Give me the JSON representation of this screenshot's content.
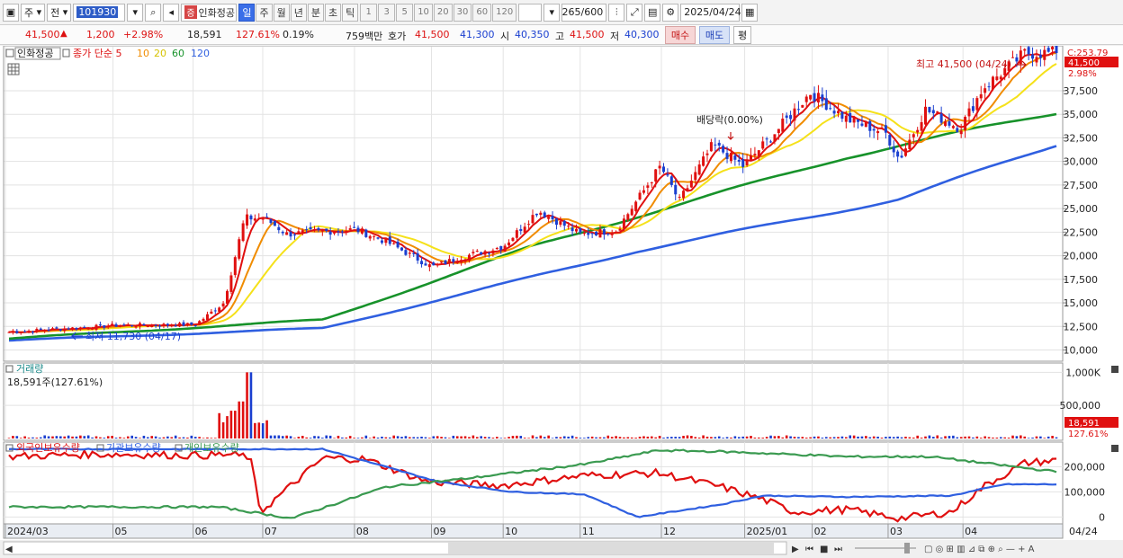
{
  "toolbar": {
    "market_label": "주",
    "prev_label": "전",
    "code": "101930",
    "stock_badge": "증",
    "stock_name": "인화정공",
    "periods": [
      "일",
      "주",
      "월",
      "년",
      "분",
      "초",
      "틱"
    ],
    "active_period": "일",
    "minute_options": [
      "1",
      "3",
      "5",
      "10",
      "20",
      "30",
      "60",
      "120"
    ],
    "bar_count": "265",
    "bar_total": "/600",
    "date": "2025/04/24"
  },
  "quote": {
    "price": "41,500",
    "up_mark": "▲",
    "change": "1,200",
    "change_pct": "+2.98%",
    "volume": "18,591",
    "volume_ratio": "127.61%",
    "turnover": "0.19%",
    "amount": "759백만",
    "bid_label": "호가",
    "ask_price": "41,500",
    "bid_price": "41,300",
    "open_label": "시",
    "open": "40,350",
    "high_label": "고",
    "high": "41,500",
    "low_label": "저",
    "low": "40,300",
    "buy_label": "매수",
    "sell_label": "매도",
    "flat_label": "평"
  },
  "price_panel": {
    "legend_stock": "인화정공",
    "legend_ma_label": "종가 단순 5",
    "legend_ma": [
      "10",
      "20",
      "60",
      "120"
    ],
    "high_annotation": "최고 41,500 (04/24)",
    "low_annotation": "최저 11,730 (04/17)",
    "dividend_annotation": "배당락(0.00%)",
    "top_scale_label": "C:253.79",
    "last_price_tag": "41,500",
    "last_pct_tag": "2.98%"
  },
  "volume_panel": {
    "title": "거래량",
    "current": "18,591주(127.61%)",
    "last_tag": "18,591",
    "last_pct_tag": "127.61%"
  },
  "holder_panel": {
    "legend": [
      "외국인보유수량",
      "기관보유수량",
      "개인보유수량"
    ]
  },
  "colors": {
    "up": "#e01010",
    "down": "#1a3fd0",
    "ma5": "#e01010",
    "ma10": "#f08c00",
    "ma20": "#f5e11a",
    "ma60": "#17922a",
    "ma120": "#2f5fe0",
    "foreign": "#e01010",
    "institution": "#2f5fe0",
    "individual": "#3a9a50"
  },
  "chart_data": [
    {
      "type": "candlestick",
      "title": "",
      "x": [
        "2024/03",
        "05",
        "06",
        "07",
        "08",
        "09",
        "10",
        "11",
        "12",
        "2025/01",
        "02",
        "03",
        "04",
        "04/24"
      ],
      "x_labels": [
        "2024/03",
        "05",
        "06",
        "07",
        "08",
        "09",
        "10",
        "11",
        "12",
        "2025/01",
        "02",
        "03",
        "04"
      ],
      "end_label": "04/24",
      "y_ticks": [
        10000,
        12500,
        15000,
        17500,
        20000,
        22500,
        25000,
        27500,
        30000,
        32500,
        35000,
        37500
      ],
      "y_tick_labels": [
        "10,000",
        "12,500",
        "15,000",
        "17,500",
        "20,000",
        "22,500",
        "25,000",
        "27,500",
        "30,000",
        "32,500",
        "35,000",
        "37,500"
      ],
      "ylim": [
        9000,
        41500
      ],
      "close_keypoints": [
        [
          "2024/03",
          11900
        ],
        [
          "05",
          12600
        ],
        [
          "06",
          12700
        ],
        [
          "06-mid",
          15000
        ],
        [
          "06-late",
          24000
        ],
        [
          "07",
          24000
        ],
        [
          "07-mid",
          22300
        ],
        [
          "08",
          22800
        ],
        [
          "08-mid",
          21500
        ],
        [
          "09",
          18800
        ],
        [
          "09-mid",
          19800
        ],
        [
          "10",
          21000
        ],
        [
          "10-mid",
          24800
        ],
        [
          "11",
          22300
        ],
        [
          "11-mid",
          22700
        ],
        [
          "12",
          29500
        ],
        [
          "12-mid",
          25800
        ],
        [
          "12-late",
          31800
        ],
        [
          "2025/01",
          29500
        ],
        [
          "01-mid",
          33500
        ],
        [
          "02",
          37300
        ],
        [
          "02-mid",
          34500
        ],
        [
          "03",
          33000
        ],
        [
          "03-mid",
          30200
        ],
        [
          "03-late",
          35500
        ],
        [
          "04",
          33500
        ],
        [
          "04-mid",
          37800
        ],
        [
          "04/24",
          41500
        ]
      ],
      "ma60_keypoints": [
        [
          0,
          11200
        ],
        [
          0.3,
          13200
        ],
        [
          0.5,
          21000
        ],
        [
          0.8,
          30500
        ],
        [
          1,
          35200
        ]
      ],
      "ma120_keypoints": [
        [
          0,
          11000
        ],
        [
          0.3,
          12300
        ],
        [
          0.6,
          20500
        ],
        [
          0.85,
          26000
        ],
        [
          1,
          31800
        ]
      ]
    },
    {
      "type": "bar",
      "title": "거래량",
      "y_ticks": [
        500000,
        1000000
      ],
      "y_tick_labels": [
        "500,000",
        "1,000K"
      ],
      "ylim": [
        0,
        1100000
      ],
      "peak_value": 1000000,
      "last_value": 18591
    },
    {
      "type": "line",
      "title": "",
      "series": [
        {
          "name": "외국인보유수량",
          "color": "#e01010"
        },
        {
          "name": "기관보유수량",
          "color": "#2f5fe0"
        },
        {
          "name": "개인보유수량",
          "color": "#3a9a50"
        }
      ],
      "y_ticks": [
        0,
        100000,
        200000
      ],
      "y_tick_labels": [
        "0",
        "100,000",
        "200,000"
      ],
      "ylim": [
        -20000,
        280000
      ]
    }
  ]
}
